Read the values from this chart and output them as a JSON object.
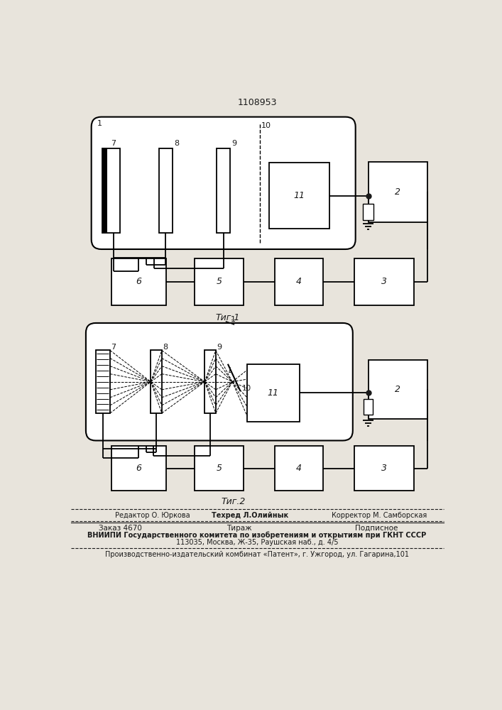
{
  "title": "1108953",
  "bg_color": "#e8e4dc",
  "line_color": "#1a1a1a",
  "fig1_caption": "Τиг.1",
  "fig2_caption": "Τиг.2",
  "footer_editor": "Редактор О. Юркова",
  "footer_techred": "Техред Л.Олийнык",
  "footer_corrector": "Корректор М. Самборская",
  "footer_order": "Заказ 4670",
  "footer_tirazh": "Тираж",
  "footer_podpisnoe": "Подписное",
  "footer_vniip1": "ВНИИПИ Государственного комитета по изобретениям и открытиям при ГКНТ СССР",
  "footer_vniip2": "113035, Москва, Ж-35, Раушская наб., д. 4/5",
  "footer_patent": "Производственно-издательский комбинат «Патент», г. Ужгород, ул. Гагарина,101"
}
